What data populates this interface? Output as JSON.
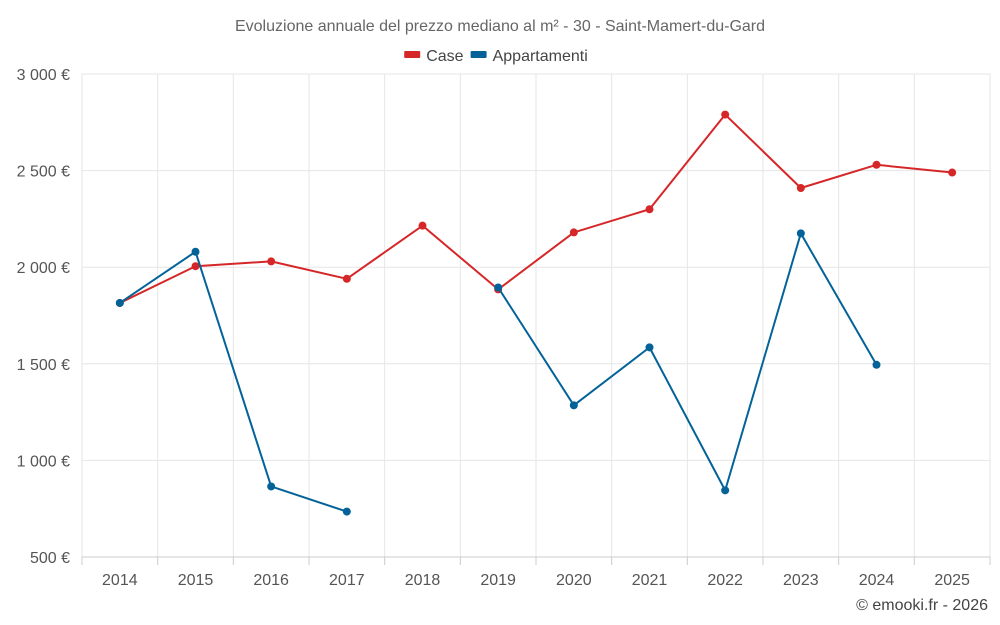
{
  "chart_data": {
    "type": "line",
    "title": "Evoluzione annuale del prezzo mediano al m² - 30 - Saint-Mamert-du-Gard",
    "categories": [
      "2014",
      "2015",
      "2016",
      "2017",
      "2018",
      "2019",
      "2020",
      "2021",
      "2022",
      "2023",
      "2024",
      "2025"
    ],
    "ylim": [
      500,
      3000
    ],
    "yticks": [
      500,
      1000,
      1500,
      2000,
      2500,
      3000
    ],
    "ytick_labels": [
      "500 €",
      "1 000 €",
      "1 500 €",
      "2 000 €",
      "2 500 €",
      "3 000 €"
    ],
    "grid": true,
    "legend_position": "top-center",
    "series": [
      {
        "name": "Case",
        "color": "#d62728",
        "values": [
          1815,
          2005,
          2030,
          1940,
          2215,
          1885,
          2180,
          2300,
          2790,
          2410,
          2530,
          2490
        ]
      },
      {
        "name": "Appartamenti",
        "color": "#036399",
        "values": [
          1815,
          2080,
          865,
          735,
          null,
          1895,
          1285,
          1585,
          845,
          2175,
          1495,
          null
        ]
      }
    ]
  },
  "credit": "© emooki.fr - 2026"
}
